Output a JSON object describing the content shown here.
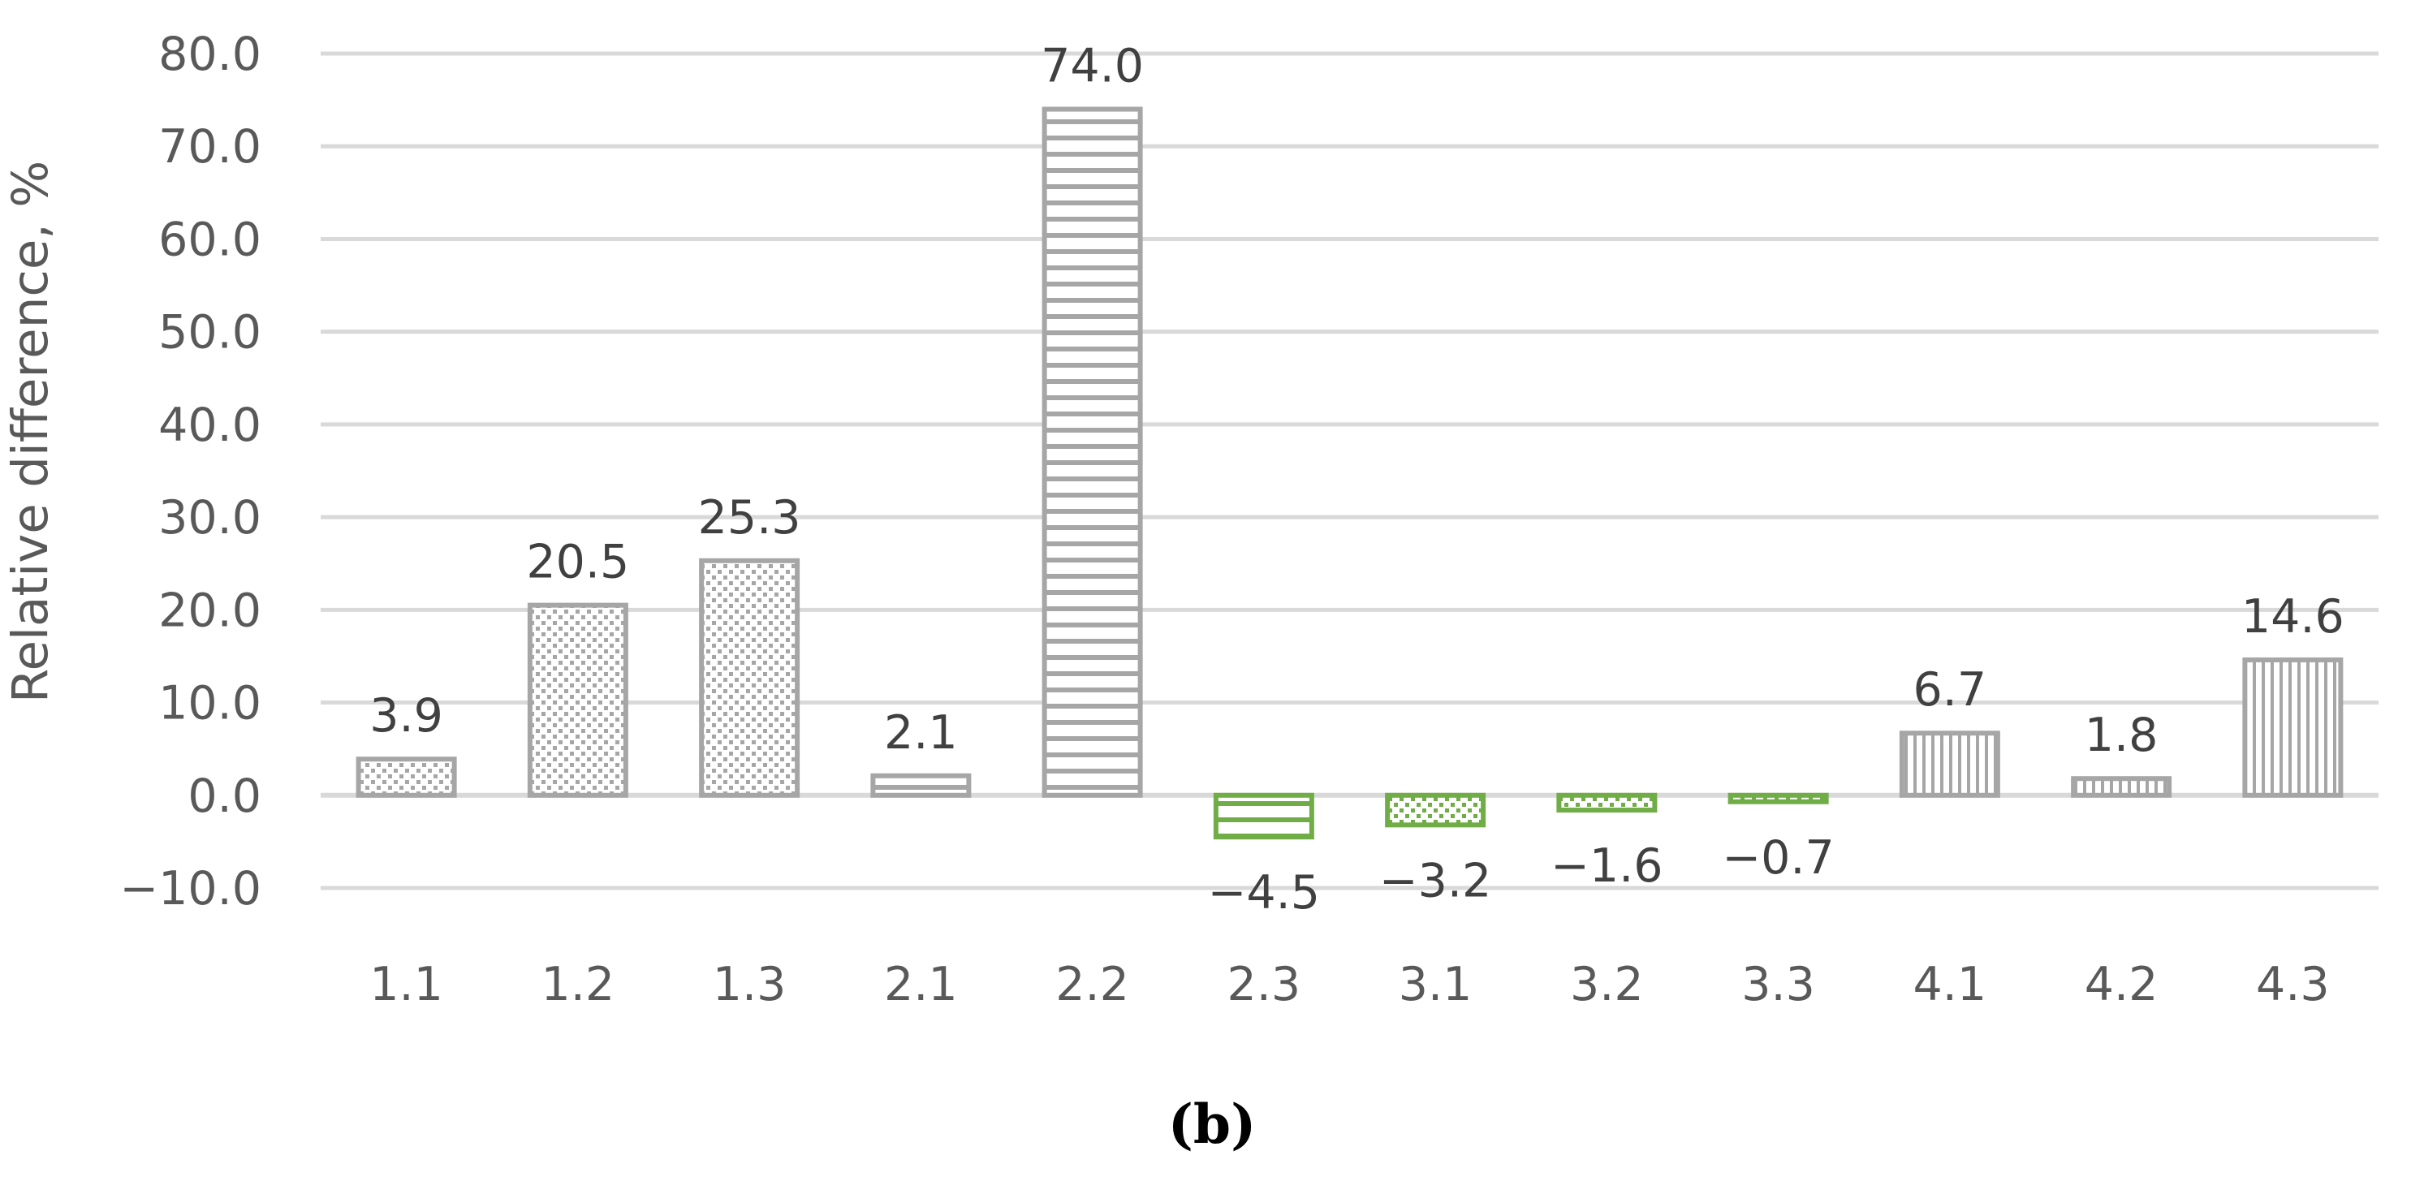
{
  "chart_data": {
    "type": "bar",
    "categories": [
      "1.1",
      "1.2",
      "1.3",
      "2.1",
      "2.2",
      "2.3",
      "3.1",
      "3.2",
      "3.3",
      "4.1",
      "4.2",
      "4.3"
    ],
    "values": [
      3.9,
      20.5,
      25.3,
      2.1,
      74.0,
      -4.5,
      -3.2,
      -1.6,
      -0.7,
      6.7,
      1.8,
      14.6
    ],
    "data_labels": [
      "3.9",
      "20.5",
      "25.3",
      "2.1",
      "74.0",
      "−4.5",
      "−3.2",
      "−1.6",
      "−0.7",
      "6.7",
      "1.8",
      "14.6"
    ],
    "patterns": [
      "dots",
      "dots",
      "dots",
      "hlines",
      "hlines",
      "hlines",
      "dots",
      "dots",
      "dots",
      "vlines",
      "vlines",
      "vlines"
    ],
    "ylabel": "Relative difference, %",
    "xlabel": "",
    "ylim": [
      -10,
      80
    ],
    "yticks": [
      80,
      70,
      60,
      50,
      40,
      30,
      20,
      10,
      0,
      -10
    ],
    "ytick_labels": [
      "80.0",
      "70.0",
      "60.0",
      "50.0",
      "40.0",
      "30.0",
      "20.0",
      "10.0",
      "0.0",
      "−10.0"
    ],
    "grid": true,
    "legend": "none",
    "colors": {
      "positive": "#a6a6a6",
      "negative": "#70ad47",
      "grid": "#d9d9d9",
      "text": "#595959"
    }
  },
  "panel_label": "(b)"
}
